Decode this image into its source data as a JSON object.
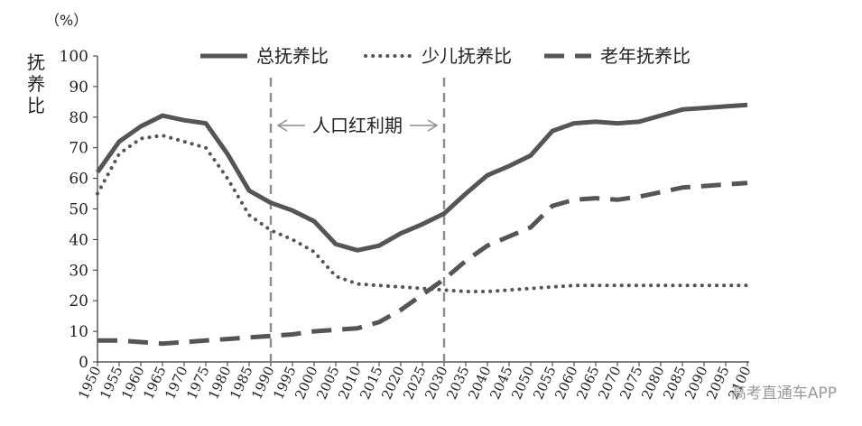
{
  "chart_data": {
    "type": "line",
    "unit_label": "（%）",
    "ylabel": "抚养比",
    "ylim": [
      0,
      100
    ],
    "yticks": [
      0,
      10,
      20,
      30,
      40,
      50,
      60,
      70,
      80,
      90,
      100
    ],
    "x": [
      "1950",
      "1955",
      "1960",
      "1965",
      "1970",
      "1975",
      "1980",
      "1985",
      "1990",
      "1995",
      "2000",
      "2005",
      "2010",
      "2015",
      "2020",
      "2025",
      "2030",
      "2035",
      "2040",
      "2045",
      "2050",
      "2055",
      "2060",
      "2065",
      "2070",
      "2075",
      "2080",
      "2085",
      "2090",
      "2095",
      "2100"
    ],
    "series": [
      {
        "name": "总抚养比",
        "style": "solid",
        "color": "#555555",
        "values": [
          62,
          72,
          77,
          80.5,
          79,
          78,
          68,
          56,
          52,
          49.5,
          46,
          38.5,
          36.5,
          38,
          42,
          45,
          48.5,
          55,
          61,
          64,
          67.5,
          75.5,
          78,
          78.5,
          78,
          78.5,
          80.5,
          82.5,
          83,
          83.5,
          84
        ]
      },
      {
        "name": "少儿抚养比",
        "style": "dotted",
        "color": "#555555",
        "values": [
          55,
          68,
          73,
          74,
          72,
          70,
          60,
          48,
          43,
          40,
          36,
          28,
          25.5,
          25,
          24.5,
          24,
          23.5,
          23,
          23,
          23.5,
          24,
          24.5,
          25,
          25,
          25,
          25,
          25,
          25,
          25,
          25,
          25
        ]
      },
      {
        "name": "老年抚养比",
        "style": "dashed",
        "color": "#555555",
        "values": [
          7,
          7,
          6.5,
          6,
          6.5,
          7,
          7.5,
          8,
          8.5,
          9,
          10,
          10.5,
          11,
          13,
          17,
          22,
          27,
          33,
          38,
          41,
          44,
          51,
          53,
          53.5,
          53,
          54,
          55.5,
          57,
          57.5,
          58,
          58.5
        ]
      }
    ],
    "annotation": {
      "text": "人口红利期",
      "x_start": "1990",
      "x_end": "2030"
    },
    "legend_position": "top",
    "grid": false
  },
  "watermark": "高考直通车APP"
}
